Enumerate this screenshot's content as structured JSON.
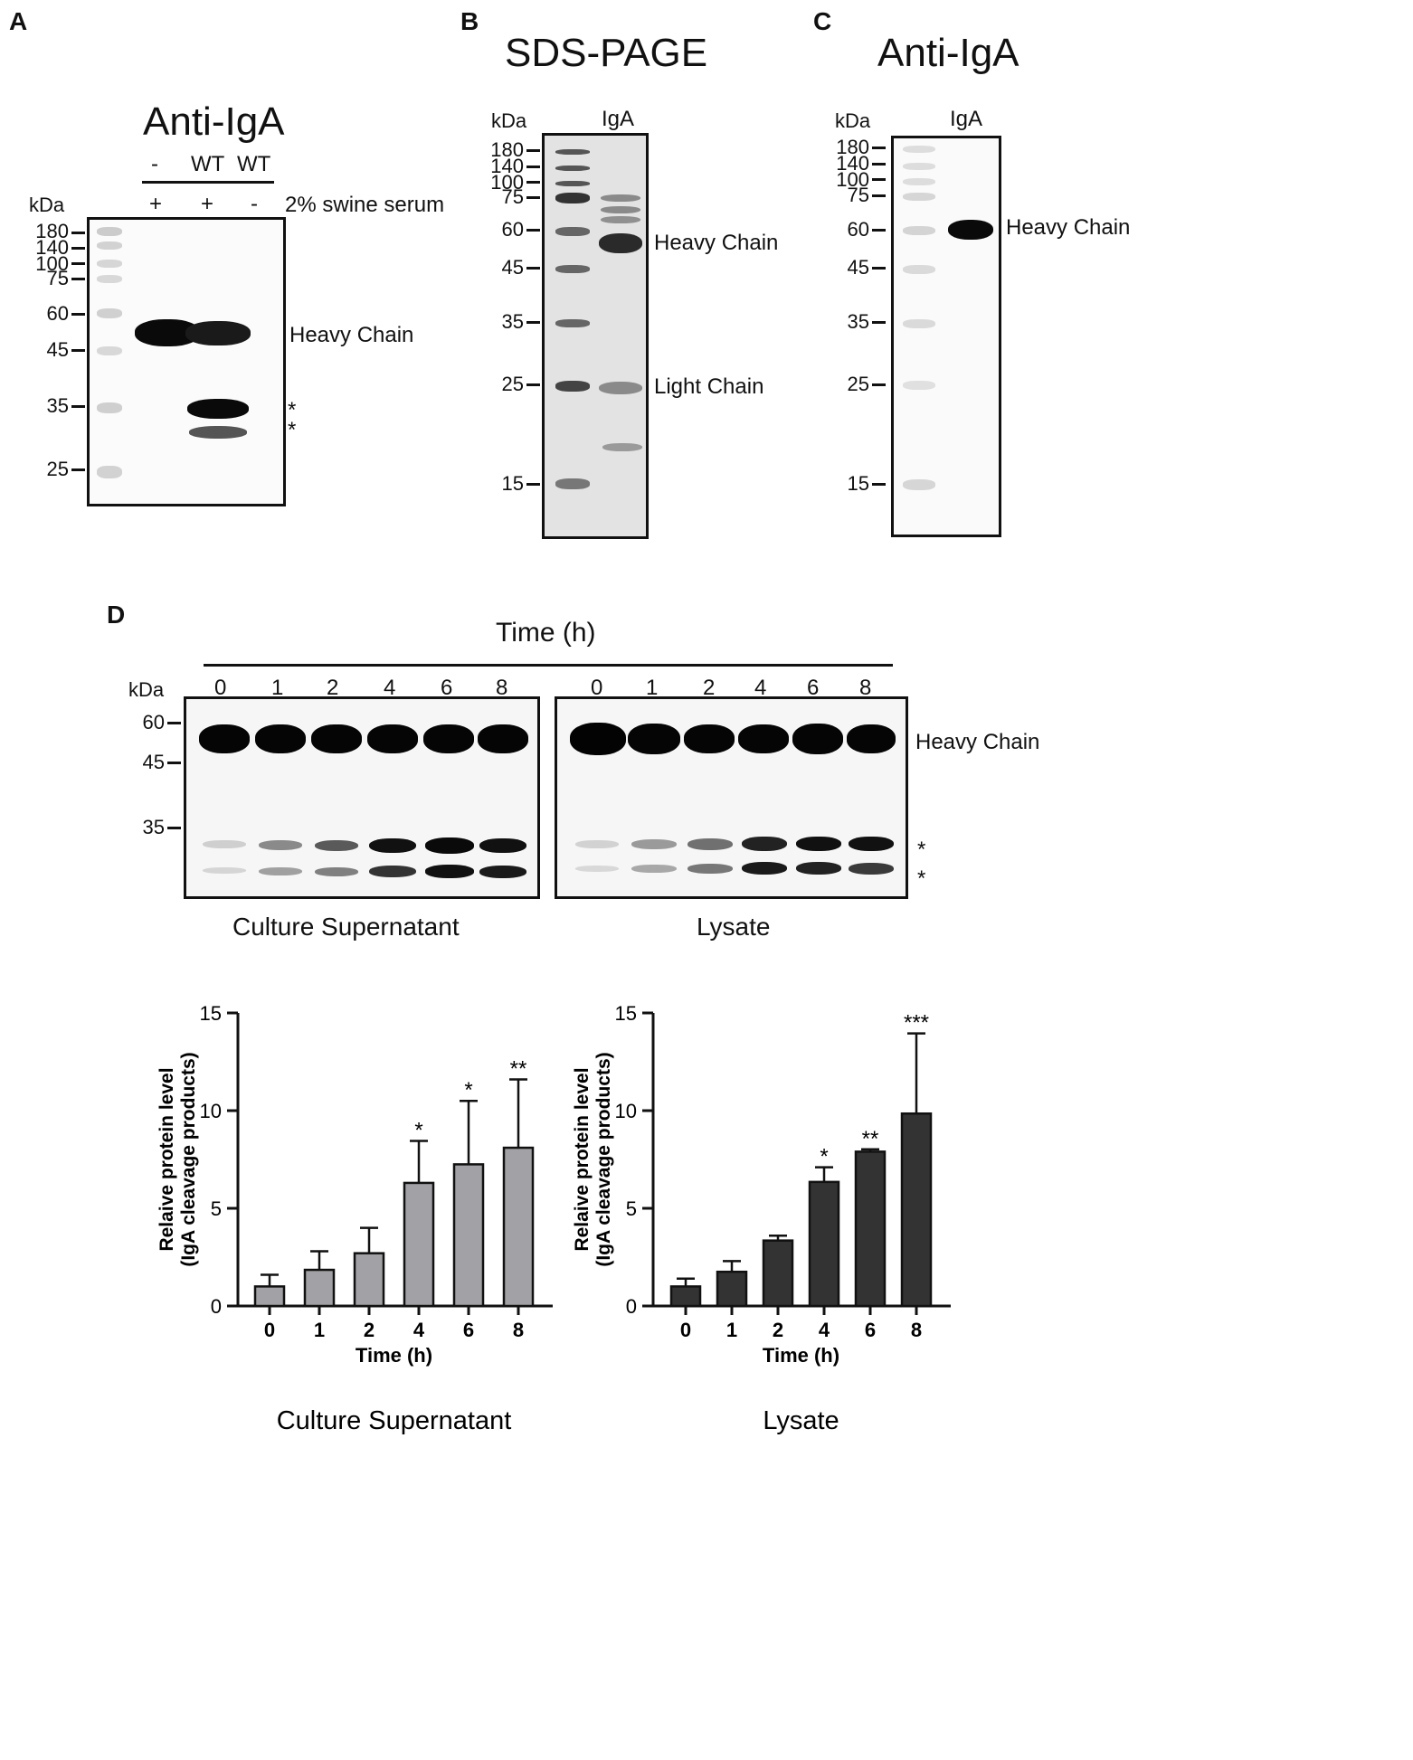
{
  "panels": {
    "A": {
      "letter": "A",
      "title": "Anti-IgA",
      "lane_labels": [
        "-",
        "WT",
        "WT"
      ],
      "serum_signs": [
        "+",
        "+",
        "-"
      ],
      "serum_label": "2% swine serum",
      "kda_label": "kDa",
      "markers": [
        "180",
        "140",
        "100",
        "75",
        "60",
        "45",
        "35",
        "25"
      ],
      "band_label": "Heavy Chain",
      "asterisks": [
        "*",
        "*"
      ]
    },
    "B": {
      "letter": "B",
      "title": "SDS-PAGE",
      "kda_label": "kDa",
      "lane_label": "IgA",
      "markers": [
        "180",
        "140",
        "100",
        "75",
        "60",
        "45",
        "35",
        "25",
        "15"
      ],
      "heavy_label": "Heavy Chain",
      "light_label": "Light Chain"
    },
    "C": {
      "letter": "C",
      "title": "Anti-IgA",
      "kda_label": "kDa",
      "lane_label": "IgA",
      "markers": [
        "180",
        "140",
        "100",
        "75",
        "60",
        "45",
        "35",
        "25",
        "15"
      ],
      "band_label": "Heavy Chain"
    },
    "D": {
      "letter": "D",
      "time_title": "Time (h)",
      "kda_label": "kDa",
      "lanes": [
        "0",
        "1",
        "2",
        "4",
        "6",
        "8"
      ],
      "markers": [
        "60",
        "45",
        "35"
      ],
      "band_label": "Heavy Chain",
      "asterisks": [
        "*",
        "*"
      ],
      "gel_left_label": "Culture Supernatant",
      "gel_right_label": "Lysate"
    }
  },
  "chart_data": [
    {
      "type": "bar",
      "title": "Culture Supernatant",
      "xlabel": "Time (h)",
      "ylabel": [
        "Relaive protein level",
        "(IgA cleavage products)"
      ],
      "categories": [
        "0",
        "1",
        "2",
        "4",
        "6",
        "8"
      ],
      "values": [
        1.0,
        1.85,
        2.7,
        6.3,
        7.25,
        8.1
      ],
      "errors": [
        0.6,
        0.95,
        1.3,
        2.15,
        3.25,
        3.5
      ],
      "significance": [
        "",
        "",
        "",
        "*",
        "*",
        "**"
      ],
      "ylim": [
        0,
        15
      ],
      "yticks": [
        "0",
        "5",
        "10",
        "15"
      ],
      "color": "#a2a2a6"
    },
    {
      "type": "bar",
      "title": "Lysate",
      "xlabel": "Time (h)",
      "ylabel": [
        "Relaive protein level",
        "(IgA cleavage products)"
      ],
      "categories": [
        "0",
        "1",
        "2",
        "4",
        "6",
        "8"
      ],
      "values": [
        1.0,
        1.75,
        3.35,
        6.35,
        7.9,
        9.85
      ],
      "errors": [
        0.4,
        0.55,
        0.25,
        0.75,
        0.12,
        4.1
      ],
      "significance": [
        "",
        "",
        "",
        "*",
        "**",
        "***"
      ],
      "ylim": [
        0,
        15
      ],
      "yticks": [
        "0",
        "5",
        "10",
        "15"
      ],
      "color": "#333333"
    }
  ]
}
